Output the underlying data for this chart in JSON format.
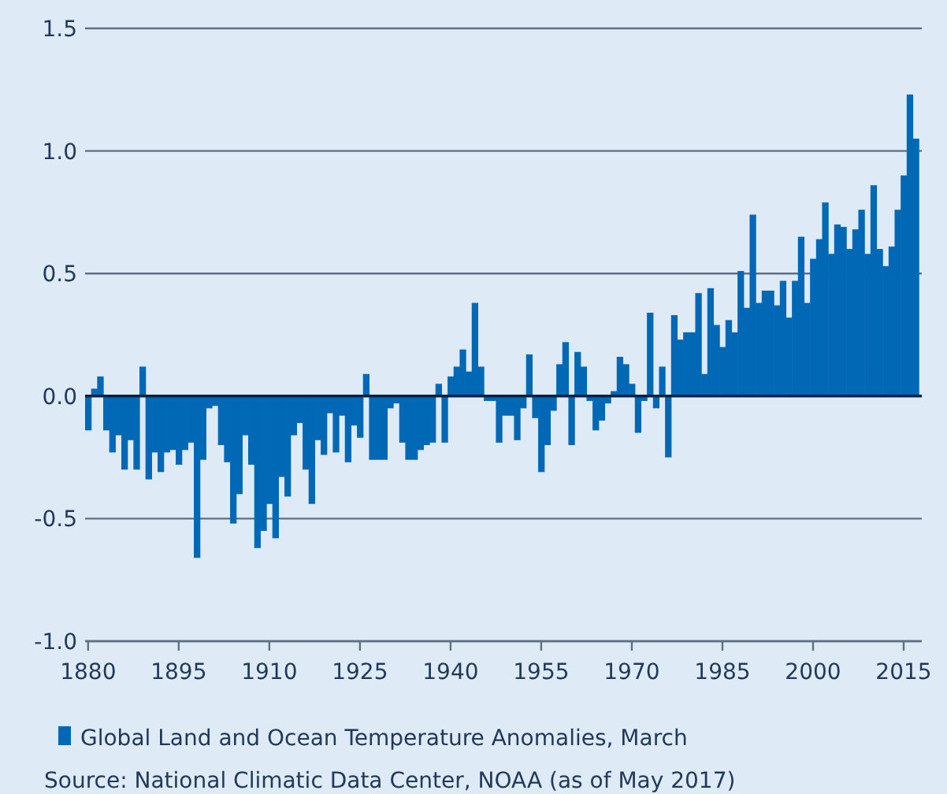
{
  "chart_data": {
    "type": "bar",
    "x": [
      1880,
      1881,
      1882,
      1883,
      1884,
      1885,
      1886,
      1887,
      1888,
      1889,
      1890,
      1891,
      1892,
      1893,
      1894,
      1895,
      1896,
      1897,
      1898,
      1899,
      1900,
      1901,
      1902,
      1903,
      1904,
      1905,
      1906,
      1907,
      1908,
      1909,
      1910,
      1911,
      1912,
      1913,
      1914,
      1915,
      1916,
      1917,
      1918,
      1919,
      1920,
      1921,
      1922,
      1923,
      1924,
      1925,
      1926,
      1927,
      1928,
      1929,
      1930,
      1931,
      1932,
      1933,
      1934,
      1935,
      1936,
      1937,
      1938,
      1939,
      1940,
      1941,
      1942,
      1943,
      1944,
      1945,
      1946,
      1947,
      1948,
      1949,
      1950,
      1951,
      1952,
      1953,
      1954,
      1955,
      1956,
      1957,
      1958,
      1959,
      1960,
      1961,
      1962,
      1963,
      1964,
      1965,
      1966,
      1967,
      1968,
      1969,
      1970,
      1971,
      1972,
      1973,
      1974,
      1975,
      1976,
      1977,
      1978,
      1979,
      1980,
      1981,
      1982,
      1983,
      1984,
      1985,
      1986,
      1987,
      1988,
      1989,
      1990,
      1991,
      1992,
      1993,
      1994,
      1995,
      1996,
      1997,
      1998,
      1999,
      2000,
      2001,
      2002,
      2003,
      2004,
      2005,
      2006,
      2007,
      2008,
      2009,
      2010,
      2011,
      2012,
      2013,
      2014,
      2015,
      2016,
      2017
    ],
    "series": [
      {
        "name": "Global Land and Ocean Temperature Anomalies, March",
        "color": "#0068b4",
        "values": [
          -0.14,
          0.03,
          0.08,
          -0.14,
          -0.23,
          -0.16,
          -0.3,
          -0.18,
          -0.3,
          0.12,
          -0.34,
          -0.23,
          -0.31,
          -0.23,
          -0.22,
          -0.28,
          -0.22,
          -0.19,
          -0.66,
          -0.26,
          -0.05,
          -0.04,
          -0.2,
          -0.27,
          -0.52,
          -0.4,
          -0.16,
          -0.28,
          -0.62,
          -0.55,
          -0.44,
          -0.58,
          -0.33,
          -0.41,
          -0.16,
          -0.11,
          -0.3,
          -0.44,
          -0.18,
          -0.24,
          -0.07,
          -0.23,
          -0.08,
          -0.27,
          -0.12,
          -0.17,
          0.09,
          -0.26,
          -0.26,
          -0.26,
          -0.05,
          -0.03,
          -0.19,
          -0.26,
          -0.26,
          -0.22,
          -0.2,
          -0.19,
          0.05,
          -0.19,
          0.08,
          0.12,
          0.19,
          0.1,
          0.38,
          0.12,
          -0.02,
          -0.02,
          -0.19,
          -0.08,
          -0.08,
          -0.18,
          -0.05,
          0.17,
          -0.09,
          -0.31,
          -0.2,
          -0.06,
          0.13,
          0.22,
          -0.2,
          0.18,
          0.12,
          -0.02,
          -0.14,
          -0.1,
          -0.03,
          0.02,
          0.16,
          0.13,
          0.05,
          -0.15,
          -0.02,
          0.34,
          -0.05,
          0.12,
          -0.25,
          0.33,
          0.23,
          0.26,
          0.26,
          0.42,
          0.09,
          0.44,
          0.29,
          0.2,
          0.31,
          0.26,
          0.51,
          0.36,
          0.74,
          0.38,
          0.43,
          0.43,
          0.37,
          0.47,
          0.32,
          0.47,
          0.65,
          0.38,
          0.56,
          0.64,
          0.79,
          0.58,
          0.7,
          0.69,
          0.6,
          0.68,
          0.76,
          0.58,
          0.86,
          0.6,
          0.53,
          0.61,
          0.76,
          0.9,
          1.23,
          1.05
        ]
      }
    ],
    "xlim": [
      1879.5,
      2018
    ],
    "xticks": [
      1880,
      1895,
      1910,
      1925,
      1940,
      1955,
      1970,
      1985,
      2000,
      2015
    ],
    "ylim": [
      -1.0,
      1.5
    ],
    "yticks": [
      {
        "value": -1.0,
        "label": "-1.0"
      },
      {
        "value": -0.5,
        "label": "-0.5"
      },
      {
        "value": 0,
        "label": "0.0"
      },
      {
        "value": 0.5,
        "label": "0.5"
      },
      {
        "value": 1.0,
        "label": "1.0"
      },
      {
        "value": 1.5,
        "label": "1.5"
      }
    ],
    "grid": "y",
    "legend": "bottom",
    "annotations": [
      "Source: National Climatic Data Center, NOAA (as of May 2017)"
    ]
  }
}
